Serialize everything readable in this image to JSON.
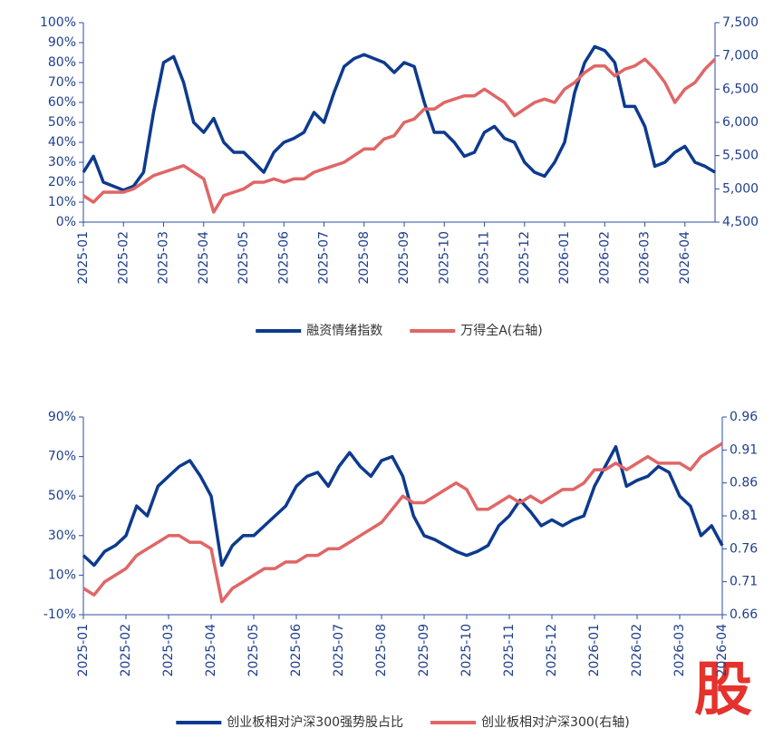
{
  "chart_data": [
    {
      "type": "line",
      "categories": [
        "2025-01",
        null,
        null,
        null,
        "2025-02",
        null,
        null,
        null,
        "2025-03",
        null,
        null,
        null,
        "2025-04",
        null,
        null,
        null,
        "2025-05",
        null,
        null,
        null,
        "2025-06",
        null,
        null,
        null,
        "2025-07",
        null,
        null,
        null,
        "2025-08",
        null,
        null,
        null,
        "2025-09",
        null,
        null,
        null,
        "2025-10",
        null,
        null,
        null,
        "2025-11",
        null,
        null,
        null,
        "2025-12",
        null,
        null,
        null,
        "2026-01",
        null,
        null,
        null,
        "2026-02",
        null,
        null,
        null,
        "2026-03",
        null,
        null,
        null,
        "2026-04",
        null,
        null,
        null
      ],
      "series": [
        {
          "name": "融资情绪指数",
          "color": "#0d3a8e",
          "values": [
            25,
            33,
            20,
            18,
            16,
            18,
            25,
            55,
            80,
            83,
            70,
            50,
            45,
            52,
            40,
            35,
            35,
            30,
            25,
            35,
            40,
            42,
            45,
            55,
            50,
            65,
            78,
            82,
            84,
            82,
            80,
            75,
            80,
            78,
            60,
            45,
            45,
            40,
            33,
            35,
            45,
            48,
            42,
            40,
            30,
            25,
            23,
            30,
            40,
            65,
            80,
            88,
            86,
            80,
            58,
            58,
            48,
            28,
            30,
            35,
            38,
            30,
            28,
            25
          ]
        },
        {
          "name": "万得全A(右轴)",
          "color": "#e06666",
          "axis": "y2",
          "values": [
            4900,
            4800,
            4950,
            4950,
            4950,
            5000,
            5100,
            5200,
            5250,
            5300,
            5350,
            5250,
            5150,
            4650,
            4900,
            4950,
            5000,
            5100,
            5100,
            5150,
            5100,
            5150,
            5150,
            5250,
            5300,
            5350,
            5400,
            5500,
            5600,
            5600,
            5750,
            5800,
            6000,
            6050,
            6200,
            6200,
            6300,
            6350,
            6400,
            6400,
            6500,
            6400,
            6300,
            6100,
            6200,
            6300,
            6350,
            6300,
            6500,
            6600,
            6750,
            6850,
            6850,
            6700,
            6800,
            6850,
            6950,
            6800,
            6600,
            6300,
            6500,
            6600,
            6800,
            6950
          ]
        }
      ],
      "ylim": [
        0,
        100
      ],
      "yticks": [
        {
          "value": 0,
          "label": "0%"
        },
        {
          "value": 10,
          "label": "10%"
        },
        {
          "value": 20,
          "label": "20%"
        },
        {
          "value": 30,
          "label": "30%"
        },
        {
          "value": 40,
          "label": "40%"
        },
        {
          "value": 50,
          "label": "50%"
        },
        {
          "value": 60,
          "label": "60%"
        },
        {
          "value": 70,
          "label": "70%"
        },
        {
          "value": 80,
          "label": "80%"
        },
        {
          "value": 90,
          "label": "90%"
        },
        {
          "value": 100,
          "label": "100%"
        }
      ],
      "y2lim": [
        4500,
        7500
      ],
      "y2ticks": [
        {
          "value": 4500,
          "label": "4,500"
        },
        {
          "value": 5000,
          "label": "5,000"
        },
        {
          "value": 5500,
          "label": "5,500"
        },
        {
          "value": 6000,
          "label": "6,000"
        },
        {
          "value": 6500,
          "label": "6,500"
        },
        {
          "value": 7000,
          "label": "7,000"
        },
        {
          "value": 7500,
          "label": "7,500"
        }
      ]
    },
    {
      "type": "line",
      "categories": [
        "2025-01",
        null,
        null,
        null,
        "2025-02",
        null,
        null,
        null,
        "2025-03",
        null,
        null,
        null,
        "2025-04",
        null,
        null,
        null,
        "2025-05",
        null,
        null,
        null,
        "2025-06",
        null,
        null,
        null,
        "2025-07",
        null,
        null,
        null,
        "2025-08",
        null,
        null,
        null,
        "2025-09",
        null,
        null,
        null,
        "2025-10",
        null,
        null,
        null,
        "2025-11",
        null,
        null,
        null,
        "2025-12",
        null,
        null,
        null,
        "2026-01",
        null,
        null,
        null,
        "2026-02",
        null,
        null,
        null,
        "2026-03",
        null,
        null,
        null,
        "2026-04"
      ],
      "series": [
        {
          "name": "创业板相对沪深300强势股占比",
          "color": "#0d3a8e",
          "values": [
            20,
            15,
            22,
            25,
            30,
            45,
            40,
            55,
            60,
            65,
            68,
            60,
            50,
            15,
            25,
            30,
            30,
            35,
            40,
            45,
            55,
            60,
            62,
            55,
            65,
            72,
            65,
            60,
            68,
            70,
            60,
            40,
            30,
            28,
            25,
            22,
            20,
            22,
            25,
            35,
            40,
            48,
            42,
            35,
            38,
            35,
            38,
            40,
            55,
            65,
            75,
            55,
            58,
            60,
            65,
            62,
            50,
            45,
            30,
            35,
            25
          ]
        },
        {
          "name": "创业板相对沪深300(右轴)",
          "color": "#e06666",
          "axis": "y2",
          "values": [
            0.7,
            0.69,
            0.71,
            0.72,
            0.73,
            0.75,
            0.76,
            0.77,
            0.78,
            0.78,
            0.77,
            0.77,
            0.76,
            0.68,
            0.7,
            0.71,
            0.72,
            0.73,
            0.73,
            0.74,
            0.74,
            0.75,
            0.75,
            0.76,
            0.76,
            0.77,
            0.78,
            0.79,
            0.8,
            0.82,
            0.84,
            0.83,
            0.83,
            0.84,
            0.85,
            0.86,
            0.85,
            0.82,
            0.82,
            0.83,
            0.84,
            0.83,
            0.84,
            0.83,
            0.84,
            0.85,
            0.85,
            0.86,
            0.88,
            0.88,
            0.89,
            0.88,
            0.89,
            0.9,
            0.89,
            0.89,
            0.89,
            0.88,
            0.9,
            0.91,
            0.92
          ]
        }
      ],
      "ylim": [
        -10,
        90
      ],
      "yticks": [
        {
          "value": -10,
          "label": "-10%"
        },
        {
          "value": 10,
          "label": "10%"
        },
        {
          "value": 30,
          "label": "30%"
        },
        {
          "value": 50,
          "label": "50%"
        },
        {
          "value": 70,
          "label": "70%"
        },
        {
          "value": 90,
          "label": "90%"
        }
      ],
      "y2lim": [
        0.66,
        0.96
      ],
      "y2ticks": [
        0.66,
        0.71,
        0.76,
        0.81,
        0.86,
        0.91,
        0.96
      ]
    }
  ],
  "watermark": "股"
}
